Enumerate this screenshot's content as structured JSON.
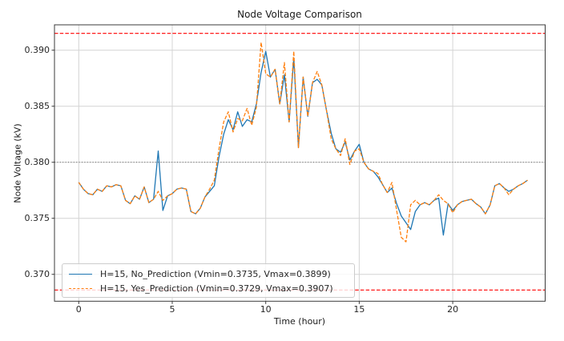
{
  "figure": {
    "title": "Node Voltage Comparison"
  },
  "colors": {
    "series_blue": "#1f77b4",
    "series_orange": "#ff7f0e",
    "limit_red": "#ff0000",
    "grid": "#d4d4d4",
    "nominal_dotted": "#555555",
    "axes_border": "#3b3b3b",
    "text": "#262626"
  },
  "chart_data": {
    "type": "line",
    "title": "Node Voltage Comparison",
    "xlabel": "Time (hour)",
    "ylabel": "Node Voltage (kV)",
    "grid": true,
    "legend_position": "lower left",
    "xlim": [
      -1.3,
      24.94
    ],
    "ylim": [
      0.3676,
      0.3923
    ],
    "x_ticks": [
      0,
      5,
      10,
      15,
      20
    ],
    "y_ticks": [
      {
        "value": 0.37,
        "label": "0.370"
      },
      {
        "value": 0.375,
        "label": "0.375"
      },
      {
        "value": 0.38,
        "label": "0.380"
      },
      {
        "value": 0.385,
        "label": "0.385"
      },
      {
        "value": 0.39,
        "label": "0.390"
      }
    ],
    "x_start": 0,
    "x_step": 0.25,
    "reference_lines": [
      {
        "id": "upper-limit",
        "value": 0.3915,
        "color": "#ff0000",
        "style": "dashed"
      },
      {
        "id": "lower-limit",
        "value": 0.3686,
        "color": "#ff0000",
        "style": "dashed"
      },
      {
        "id": "nominal-voltage",
        "value": 0.38,
        "color": "#555555",
        "style": "dotted"
      }
    ],
    "series": [
      {
        "id": "no-prediction",
        "name": "H=15, No_Prediction (Vmin=0.3735, Vmax=0.3899)",
        "color": "#1f77b4",
        "style": "solid",
        "vmin": 0.3735,
        "vmax": 0.3899,
        "values": [
          0.3782,
          0.3776,
          0.3772,
          0.3771,
          0.3776,
          0.3774,
          0.3779,
          0.3778,
          0.378,
          0.3779,
          0.3766,
          0.3763,
          0.377,
          0.3767,
          0.3778,
          0.3764,
          0.3767,
          0.381,
          0.3757,
          0.377,
          0.3772,
          0.3776,
          0.3777,
          0.3776,
          0.3756,
          0.3754,
          0.3759,
          0.3769,
          0.3774,
          0.3779,
          0.3805,
          0.3825,
          0.3838,
          0.3829,
          0.3845,
          0.3832,
          0.3838,
          0.3836,
          0.3852,
          0.388,
          0.3899,
          0.3876,
          0.3883,
          0.3852,
          0.3878,
          0.3836,
          0.3893,
          0.3813,
          0.3876,
          0.3841,
          0.3871,
          0.3874,
          0.3869,
          0.3846,
          0.3826,
          0.3812,
          0.3809,
          0.3818,
          0.3802,
          0.381,
          0.3816,
          0.38,
          0.3794,
          0.3792,
          0.3787,
          0.378,
          0.3773,
          0.3777,
          0.3763,
          0.3752,
          0.3746,
          0.374,
          0.3756,
          0.3762,
          0.3764,
          0.3762,
          0.3766,
          0.3768,
          0.3735,
          0.3763,
          0.3757,
          0.3762,
          0.3765,
          0.3766,
          0.3767,
          0.3763,
          0.376,
          0.3754,
          0.3762,
          0.3779,
          0.3781,
          0.3777,
          0.3774,
          0.3776,
          0.3779,
          0.3781,
          0.3784
        ]
      },
      {
        "id": "yes-prediction",
        "name": "H=15, Yes_Prediction (Vmin=0.3729, Vmax=0.3907)",
        "color": "#ff7f0e",
        "style": "dashed",
        "vmin": 0.3729,
        "vmax": 0.3907,
        "values": [
          0.3782,
          0.3776,
          0.3772,
          0.3771,
          0.3776,
          0.3774,
          0.3779,
          0.3778,
          0.378,
          0.3779,
          0.3766,
          0.3763,
          0.377,
          0.3767,
          0.3778,
          0.3764,
          0.3767,
          0.3774,
          0.3766,
          0.377,
          0.3772,
          0.3776,
          0.3777,
          0.3776,
          0.3756,
          0.3754,
          0.3759,
          0.3769,
          0.3776,
          0.3784,
          0.3812,
          0.3836,
          0.3845,
          0.3827,
          0.3839,
          0.3837,
          0.3848,
          0.3833,
          0.3849,
          0.3907,
          0.3879,
          0.3876,
          0.3883,
          0.3852,
          0.3889,
          0.3836,
          0.3899,
          0.3813,
          0.3876,
          0.3841,
          0.3871,
          0.3881,
          0.3869,
          0.3846,
          0.3821,
          0.3812,
          0.3806,
          0.3821,
          0.3798,
          0.381,
          0.3812,
          0.38,
          0.3794,
          0.3792,
          0.379,
          0.378,
          0.3773,
          0.3782,
          0.3757,
          0.3733,
          0.3729,
          0.3762,
          0.3766,
          0.3762,
          0.3764,
          0.3762,
          0.3766,
          0.3771,
          0.3766,
          0.3763,
          0.3755,
          0.3762,
          0.3765,
          0.3766,
          0.3767,
          0.3763,
          0.376,
          0.3754,
          0.3762,
          0.3779,
          0.3781,
          0.3777,
          0.3771,
          0.3776,
          0.3779,
          0.3781,
          0.3784
        ]
      }
    ]
  },
  "legend": {
    "items": [
      {
        "label": "H=15, No_Prediction (Vmin=0.3735, Vmax=0.3899)"
      },
      {
        "label": "H=15, Yes_Prediction (Vmin=0.3729, Vmax=0.3907)"
      }
    ]
  }
}
